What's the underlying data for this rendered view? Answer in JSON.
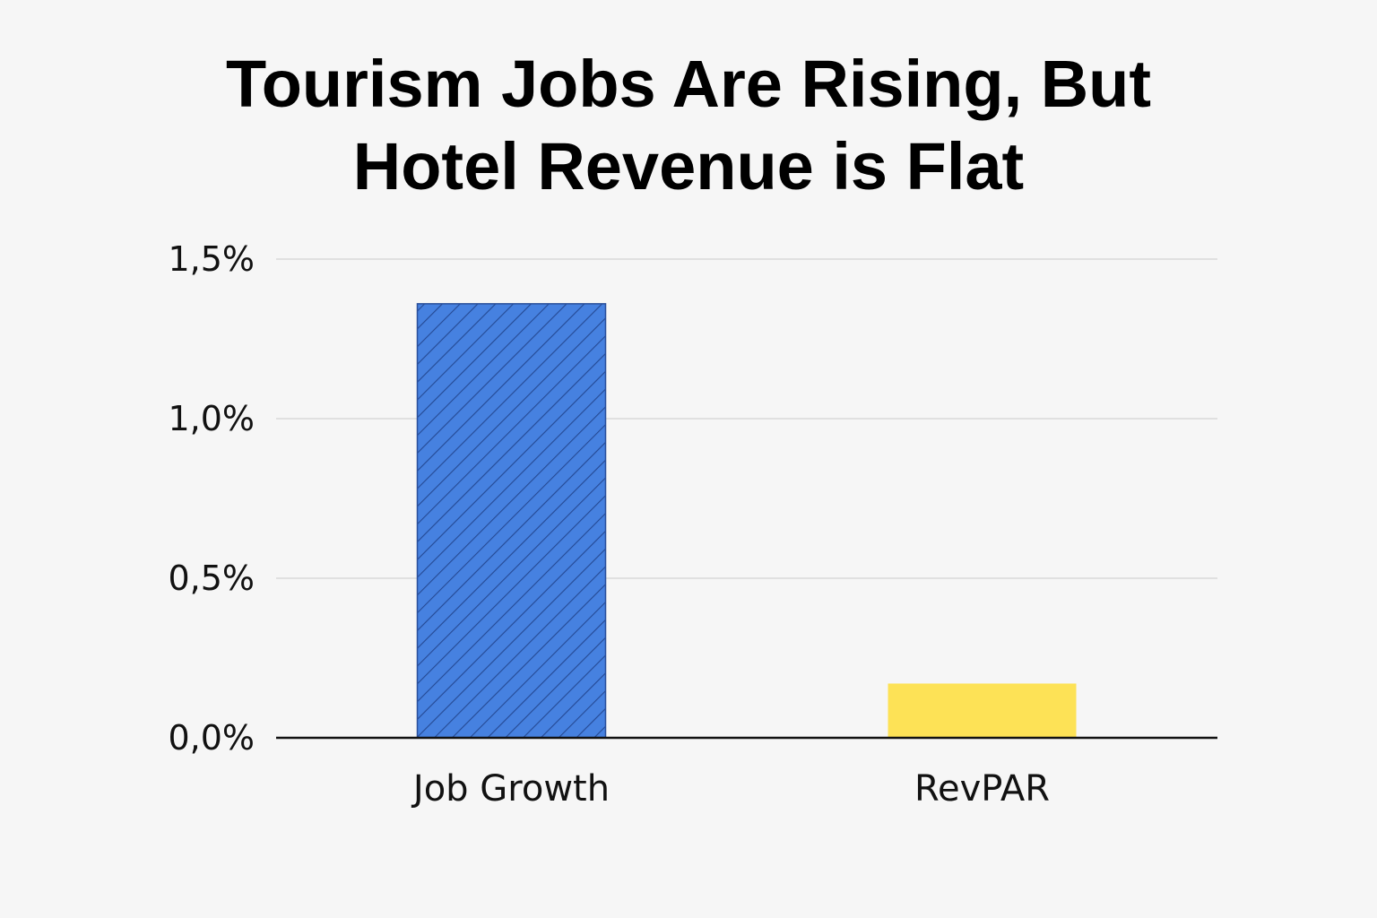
{
  "chart_data": {
    "type": "bar",
    "title_lines": [
      "Tourism Jobs Are Rising, But",
      "Hotel Revenue is Flat"
    ],
    "categories": [
      "Job Growth",
      "RevPAR"
    ],
    "values": [
      1.36,
      0.17
    ],
    "ylim": [
      0,
      1.5
    ],
    "yticks": [
      0,
      0.5,
      1.0,
      1.5
    ],
    "ytick_labels": [
      "0,0%",
      "0,5%",
      "1,0%",
      "1,5%"
    ],
    "colors": [
      "#4681e0",
      "#fde256"
    ],
    "hatched": [
      true,
      false
    ],
    "grid": true,
    "legend": "none"
  }
}
